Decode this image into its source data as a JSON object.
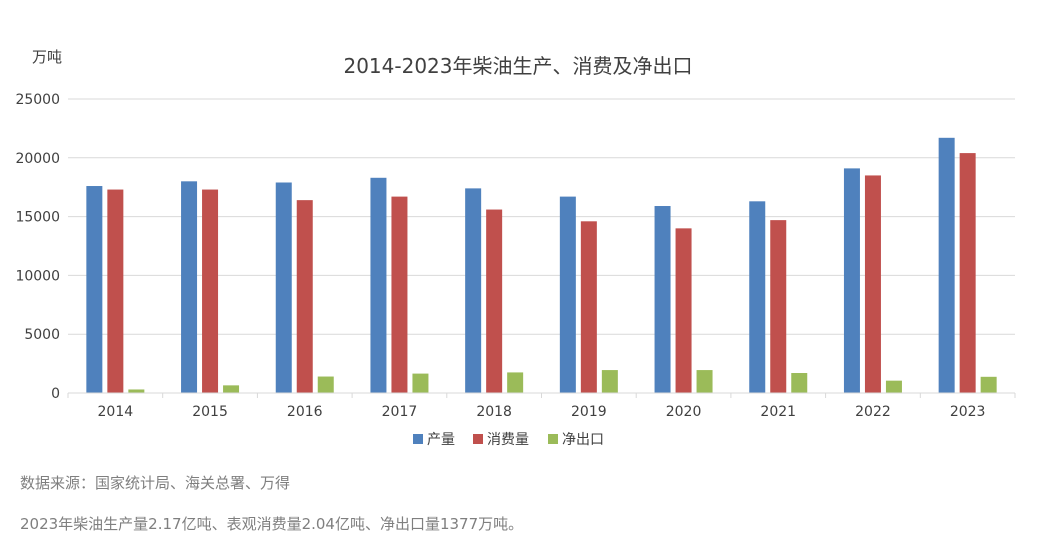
{
  "chart_data": {
    "type": "bar",
    "title": "2014-2023年柴油生产、消费及净出口",
    "ylabel": "万吨",
    "xlabel": "",
    "ylim": [
      0,
      25000
    ],
    "yticks": [
      0,
      5000,
      10000,
      15000,
      20000,
      25000
    ],
    "grid": true,
    "legend_position": "bottom",
    "categories": [
      "2014",
      "2015",
      "2016",
      "2017",
      "2018",
      "2019",
      "2020",
      "2021",
      "2022",
      "2023"
    ],
    "series": [
      {
        "name": "产量",
        "color": "#4f81bd",
        "values": [
          17600,
          18000,
          17900,
          18300,
          17400,
          16700,
          15900,
          16300,
          19100,
          21700
        ]
      },
      {
        "name": "消费量",
        "color": "#c0504d",
        "values": [
          17300,
          17300,
          16400,
          16700,
          15600,
          14600,
          14000,
          14700,
          18500,
          20400
        ]
      },
      {
        "name": "净出口",
        "color": "#9bbb59",
        "values": [
          300,
          650,
          1400,
          1650,
          1750,
          1950,
          1950,
          1700,
          1050,
          1377
        ]
      }
    ]
  },
  "source_text": "数据来源：国家统计局、海关总署、万得",
  "note_text": "2023年柴油生产量2.17亿吨、表观消费量2.04亿吨、净出口量1377万吨。"
}
